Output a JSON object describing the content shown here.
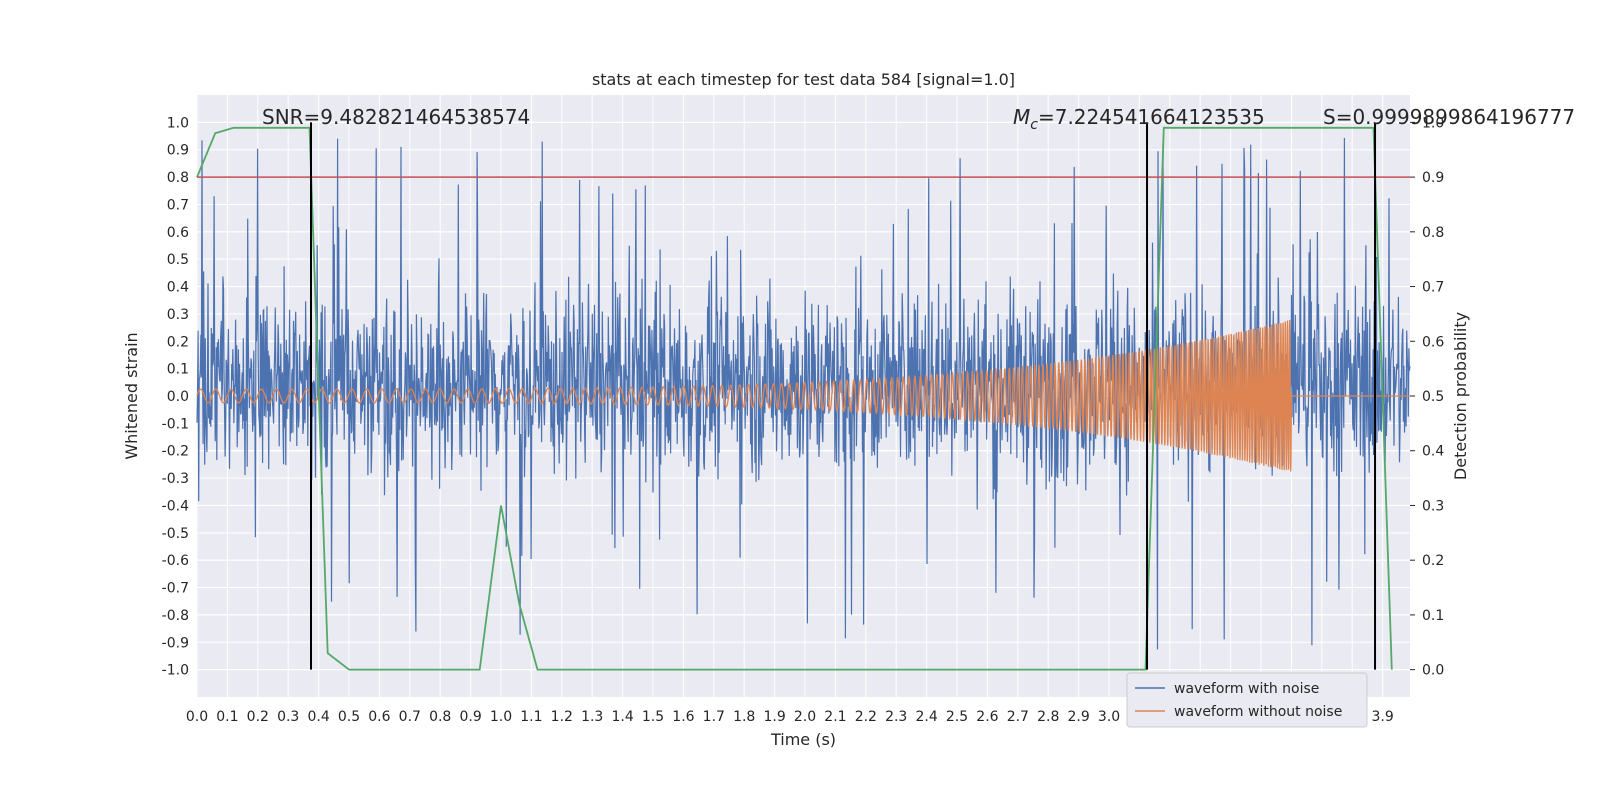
{
  "chart_data": {
    "type": "line",
    "title": "stats at each timestep for test data 584 [signal=1.0]",
    "xlabel": "Time (s)",
    "ylabel": "Whitened strain",
    "ylabel_right": "Detection probability",
    "xlim": [
      0.0,
      3.99
    ],
    "ylim": [
      -1.1,
      1.1
    ],
    "ylim_right": [
      -0.05,
      1.05
    ],
    "x_ticks": [
      "0.0",
      "0.1",
      "0.2",
      "0.3",
      "0.4",
      "0.5",
      "0.6",
      "0.7",
      "0.8",
      "0.9",
      "1.0",
      "1.1",
      "1.2",
      "1.3",
      "1.4",
      "1.5",
      "1.6",
      "1.7",
      "1.8",
      "1.9",
      "2.0",
      "2.1",
      "2.2",
      "2.3",
      "2.4",
      "2.5",
      "2.6",
      "2.7",
      "2.8",
      "2.9",
      "3.0",
      "3.1",
      "3.2",
      "3.3",
      "3.4",
      "3.5",
      "3.6",
      "3.7",
      "3.8",
      "3.9"
    ],
    "y_ticks": [
      "1.0",
      "0.9",
      "0.8",
      "0.7",
      "0.6",
      "0.5",
      "0.4",
      "0.3",
      "0.2",
      "0.1",
      "0.0",
      "-0.1",
      "-0.2",
      "-0.3",
      "-0.4",
      "-0.5",
      "-0.6",
      "-0.7",
      "-0.8",
      "-0.9",
      "-1.0"
    ],
    "y_ticks_right": [
      "1.0",
      "0.9",
      "0.8",
      "0.7",
      "0.6",
      "0.5",
      "0.4",
      "0.3",
      "0.2",
      "0.1",
      "0.0"
    ],
    "annotations": {
      "snr": "SNR=9.482821464538574",
      "mc_symbol": "M",
      "mc_sub": "c",
      "mc_value": "=7.224541664123535",
      "s": "S=0.9999899864196777"
    },
    "threshold": {
      "value": 0.9,
      "axis": "right",
      "color": "#c44e52"
    },
    "vertical_lines": [
      0.375,
      3.125,
      3.875
    ],
    "series": [
      {
        "name": "waveform with noise",
        "color": "#4c72b0",
        "description_amplitude": "noise, mostly within -0.4..0.5, spikes to ±0.96"
      },
      {
        "name": "waveform without noise",
        "color": "#dd8452",
        "chirp": {
          "start": 0.0,
          "end": 3.6,
          "amp_start": 0.025,
          "amp_end": 0.28,
          "f_start": 20,
          "f_end": 140
        }
      },
      {
        "name": "detection probability",
        "color": "#55a868",
        "axis": "right",
        "x": [
          0.0,
          0.06,
          0.12,
          0.18,
          0.25,
          0.31,
          0.37,
          0.43,
          0.5,
          0.56,
          0.62,
          0.68,
          0.75,
          0.81,
          0.87,
          0.93,
          1.0,
          1.06,
          1.12,
          1.18,
          1.25,
          1.5,
          2.0,
          2.5,
          3.0,
          3.06,
          3.12,
          3.18,
          3.25,
          3.5,
          3.81,
          3.87,
          3.93
        ],
        "y": [
          0.9,
          0.98,
          0.99,
          0.99,
          0.99,
          0.99,
          0.99,
          0.03,
          0.0,
          0.0,
          0.0,
          0.0,
          0.0,
          0.0,
          0.0,
          0.0,
          0.3,
          0.12,
          0.0,
          0.0,
          0.0,
          0.0,
          0.0,
          0.0,
          0.0,
          0.0,
          0.0,
          0.99,
          0.99,
          0.99,
          0.99,
          0.99,
          0.0
        ]
      }
    ],
    "legend": {
      "placement": "lower-right",
      "entries": [
        "waveform with noise",
        "waveform without noise"
      ]
    }
  }
}
